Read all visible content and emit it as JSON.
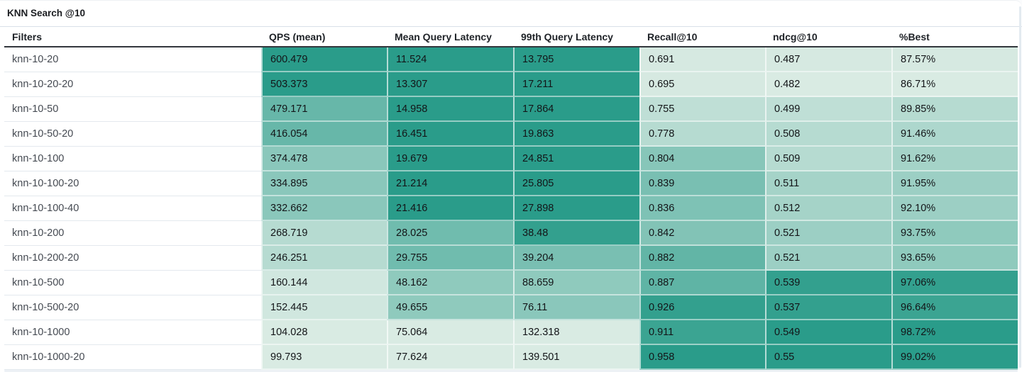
{
  "chart_data": {
    "type": "table",
    "title": "KNN Search @10",
    "columns": [
      "Filters",
      "QPS (mean)",
      "Mean Query Latency",
      "99th Query Latency",
      "Recall@10",
      "ndcg@10",
      "%Best"
    ],
    "heat_scale": {
      "best_color": "#2A9C8A",
      "worst_color": "#D9EBE3",
      "meaning": "darker teal = better result within column"
    },
    "rows": [
      {
        "filter": "knn-10-20",
        "values": [
          "600.479",
          "11.524",
          "13.795",
          "0.691",
          "0.487",
          "87.57%"
        ],
        "colors": [
          "#2A9C8A",
          "#2A9C8A",
          "#2A9C8A",
          "#D6E9E1",
          "#D6E9E1",
          "#D6E9E1"
        ]
      },
      {
        "filter": "knn-10-20-20",
        "values": [
          "503.373",
          "13.307",
          "17.211",
          "0.695",
          "0.482",
          "86.71%"
        ],
        "colors": [
          "#2A9C8A",
          "#2A9C8A",
          "#2A9C8A",
          "#D6E9E1",
          "#D9EBE3",
          "#D9EBE3"
        ]
      },
      {
        "filter": "knn-10-50",
        "values": [
          "479.171",
          "14.958",
          "17.864",
          "0.755",
          "0.499",
          "89.85%"
        ],
        "colors": [
          "#67B7A9",
          "#2A9C8A",
          "#2A9C8A",
          "#BFDFD6",
          "#BFDFD6",
          "#B6DBD1"
        ]
      },
      {
        "filter": "knn-10-50-20",
        "values": [
          "416.054",
          "16.451",
          "19.863",
          "0.778",
          "0.508",
          "91.46%"
        ],
        "colors": [
          "#67B7A9",
          "#2A9C8A",
          "#2A9C8A",
          "#B6DBD1",
          "#B6DBD1",
          "#ADD7CD"
        ]
      },
      {
        "filter": "knn-10-100",
        "values": [
          "374.478",
          "19.679",
          "24.851",
          "0.804",
          "0.509",
          "91.62%"
        ],
        "colors": [
          "#8AC7BB",
          "#2A9C8A",
          "#2A9C8A",
          "#87C6B9",
          "#B6DBD1",
          "#A5D3C8"
        ]
      },
      {
        "filter": "knn-10-100-20",
        "values": [
          "334.895",
          "21.214",
          "25.805",
          "0.839",
          "0.511",
          "91.95%"
        ],
        "colors": [
          "#8AC7BB",
          "#2A9C8A",
          "#2A9C8A",
          "#79BFB2",
          "#A5D3C8",
          "#9CCFC4"
        ]
      },
      {
        "filter": "knn-10-100-40",
        "values": [
          "332.662",
          "21.416",
          "27.898",
          "0.836",
          "0.512",
          "92.10%"
        ],
        "colors": [
          "#8AC7BB",
          "#2A9C8A",
          "#2A9C8A",
          "#7EC2B5",
          "#A5D3C8",
          "#9CCFC4"
        ]
      },
      {
        "filter": "knn-10-200",
        "values": [
          "268.719",
          "28.025",
          "38.48",
          "0.842",
          "0.521",
          "93.75%"
        ],
        "colors": [
          "#B6DBD1",
          "#70BCAE",
          "#33A08E",
          "#82C3B6",
          "#9CCFC4",
          "#8FCABD"
        ]
      },
      {
        "filter": "knn-10-200-20",
        "values": [
          "246.251",
          "29.755",
          "39.204",
          "0.882",
          "0.521",
          "93.65%"
        ],
        "colors": [
          "#B6DBD1",
          "#70BCAE",
          "#79BFB2",
          "#62B5A6",
          "#9CCFC4",
          "#8FCABD"
        ]
      },
      {
        "filter": "knn-10-500",
        "values": [
          "160.144",
          "48.162",
          "88.659",
          "0.887",
          "0.539",
          "97.06%"
        ],
        "colors": [
          "#D0E7DF",
          "#8FCABD",
          "#8FCABD",
          "#5FB4A5",
          "#33A08E",
          "#33A08E"
        ]
      },
      {
        "filter": "knn-10-500-20",
        "values": [
          "152.445",
          "49.655",
          "76.11",
          "0.926",
          "0.537",
          "96.64%"
        ],
        "colors": [
          "#D0E7DF",
          "#8FCABD",
          "#8AC7BB",
          "#33A08E",
          "#33A08E",
          "#3BA492"
        ]
      },
      {
        "filter": "knn-10-1000",
        "values": [
          "104.028",
          "75.064",
          "132.318",
          "0.911",
          "0.549",
          "98.72%"
        ],
        "colors": [
          "#D9EBE3",
          "#D9EBE3",
          "#D9EBE3",
          "#3BA492",
          "#2A9C8A",
          "#2A9C8A"
        ]
      },
      {
        "filter": "knn-10-1000-20",
        "values": [
          "99.793",
          "77.624",
          "139.501",
          "0.958",
          "0.55",
          "99.02%"
        ],
        "colors": [
          "#D9EBE3",
          "#D9EBE3",
          "#D9EBE3",
          "#2A9C8A",
          "#2A9C8A",
          "#2A9C8A"
        ]
      }
    ]
  }
}
